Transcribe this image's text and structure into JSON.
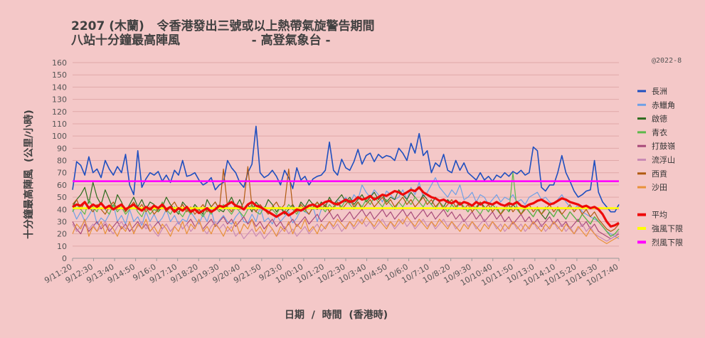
{
  "title_line1": "2207 (木蘭)   令香港發出三號或以上熱帶氣旋警告期間",
  "title_line2": "八站十分鐘最高陣風                 - 高登氣象台 -",
  "credit": "@2022-8",
  "xlabel": "日期  /  時間  (香港時)",
  "ylabel": "十分鐘最高陣風  (公里/小時)",
  "chart_data": {
    "type": "line",
    "ylim": [
      0,
      160
    ],
    "yticks": [
      0,
      10,
      20,
      30,
      40,
      50,
      60,
      70,
      80,
      90,
      100,
      110,
      120,
      130,
      140,
      150,
      160
    ],
    "grid": true,
    "legend_placement": "right",
    "x_tick_labels": [
      "9/11:20",
      "9/12:30",
      "9/13:40",
      "9/14:50",
      "9/16:0",
      "9/17:10",
      "9/18:20",
      "9/19:30",
      "9/20:40",
      "9/21:50",
      "9/23:0",
      "10/0:10",
      "10/1:20",
      "10/2:30",
      "10/3:40",
      "10/4:50",
      "10/6:0",
      "10/7:10",
      "10/8:20",
      "10/9:30",
      "10/10:40",
      "10/11:50",
      "10/13:0",
      "10/14:10",
      "10/15:20",
      "10/16:30",
      "10/17:40"
    ],
    "points_per_series": 135,
    "series": [
      {
        "name": "長洲",
        "color": "#1f4fbf",
        "width": 1.6,
        "anchors": [
          56,
          79,
          76,
          68,
          83,
          70,
          73,
          66,
          80,
          73,
          68,
          75,
          70,
          85,
          60,
          52,
          88,
          58,
          65,
          70,
          68,
          71,
          63,
          68,
          62,
          72,
          68,
          80,
          67,
          68,
          70,
          64,
          60,
          62,
          66,
          56,
          60,
          62,
          80,
          74,
          70,
          62,
          58,
          70,
          77,
          108,
          70,
          66,
          68,
          72,
          67,
          60,
          72,
          66,
          57,
          74,
          64,
          67,
          60,
          65,
          67,
          68,
          72,
          95,
          72,
          68,
          81,
          74,
          72,
          79,
          89,
          77,
          84,
          86,
          79,
          85,
          82,
          84,
          83,
          80,
          90,
          86,
          80,
          94,
          86,
          102,
          84,
          88,
          70,
          78,
          75,
          85,
          72,
          70,
          80,
          72,
          78,
          70,
          67,
          64,
          70,
          64,
          67,
          63,
          68,
          66,
          70,
          67,
          71,
          69,
          72,
          68,
          70,
          91,
          88,
          58,
          55,
          60,
          60,
          70,
          84,
          70,
          63,
          55,
          50,
          52,
          55,
          56,
          80,
          54,
          46,
          42,
          38,
          38,
          44
        ],
        "anchors_note": ""
      },
      {
        "name": "赤鱲角",
        "color": "#6fa0e6",
        "width": 1.2,
        "anchors": [
          40,
          32,
          38,
          30,
          35,
          41,
          28,
          33,
          30,
          36,
          44,
          30,
          35,
          28,
          40,
          30,
          34,
          27,
          38,
          30,
          36,
          29,
          33,
          40,
          30,
          35,
          28,
          32,
          30,
          38,
          33,
          28,
          36,
          30,
          40,
          26,
          31,
          35,
          30,
          28,
          34,
          38,
          30,
          29,
          36,
          30,
          42,
          30,
          33,
          28,
          36,
          30,
          34,
          38,
          29,
          33,
          40,
          38,
          36,
          42,
          30,
          40,
          44,
          38,
          42,
          48,
          46,
          50,
          44,
          52,
          48,
          60,
          54,
          50,
          56,
          52,
          46,
          55,
          52,
          48,
          50,
          56,
          48,
          58,
          52,
          62,
          50,
          54,
          60,
          66,
          58,
          54,
          50,
          56,
          52,
          60,
          48,
          50,
          54,
          46,
          52,
          50,
          44,
          48,
          52,
          46,
          50,
          48,
          52,
          46,
          48,
          44,
          50,
          52,
          54,
          48,
          50,
          46,
          44,
          48,
          52,
          46,
          42,
          40,
          44,
          38,
          36,
          34,
          32,
          30,
          26,
          22,
          20,
          18,
          16
        ]
      },
      {
        "name": "啟德",
        "color": "#2e6b1e",
        "width": 1.2,
        "anchors": [
          42,
          48,
          52,
          58,
          45,
          62,
          50,
          44,
          56,
          48,
          40,
          52,
          46,
          38,
          44,
          50,
          42,
          48,
          40,
          46,
          44,
          38,
          42,
          50,
          44,
          40,
          36,
          46,
          42,
          38,
          44,
          40,
          36,
          48,
          42,
          46,
          40,
          38,
          44,
          50,
          42,
          48,
          40,
          44,
          38,
          46,
          42,
          40,
          48,
          44,
          38,
          42,
          36,
          40,
          44,
          38,
          46,
          42,
          48,
          44,
          40,
          46,
          42,
          50,
          44,
          48,
          52,
          46,
          50,
          44,
          48,
          52,
          46,
          50,
          54,
          48,
          52,
          46,
          50,
          48,
          56,
          52,
          48,
          54,
          50,
          46,
          52,
          48,
          44,
          50,
          46,
          42,
          48,
          44,
          40,
          46,
          42,
          38,
          44,
          40,
          46,
          42,
          38,
          44,
          40,
          36,
          42,
          38,
          44,
          40,
          36,
          42,
          38,
          34,
          40,
          36,
          32,
          38,
          34,
          40,
          36,
          32,
          38,
          34,
          30,
          36,
          32,
          28,
          34,
          30,
          26,
          22,
          18,
          20,
          24
        ]
      },
      {
        "name": "青衣",
        "color": "#5cb84a",
        "width": 1.2,
        "anchors": [
          38,
          44,
          40,
          36,
          48,
          42,
          38,
          46,
          40,
          36,
          44,
          38,
          42,
          36,
          40,
          44,
          38,
          34,
          42,
          36,
          40,
          38,
          46,
          40,
          36,
          42,
          38,
          34,
          40,
          36,
          42,
          38,
          34,
          40,
          36,
          42,
          38,
          44,
          40,
          36,
          42,
          38,
          34,
          40,
          44,
          38,
          36,
          42,
          38,
          40,
          36,
          42,
          38,
          44,
          40,
          36,
          42,
          38,
          44,
          40,
          46,
          42,
          38,
          44,
          40,
          46,
          42,
          48,
          44,
          40,
          46,
          42,
          48,
          44,
          50,
          46,
          42,
          48,
          44,
          40,
          46,
          42,
          48,
          44,
          50,
          46,
          42,
          48,
          44,
          40,
          46,
          42,
          38,
          44,
          40,
          46,
          42,
          38,
          44,
          40,
          36,
          42,
          38,
          44,
          40,
          36,
          42,
          38,
          70,
          40,
          36,
          42,
          38,
          34,
          40,
          36,
          42,
          38,
          34,
          40,
          36,
          32,
          38,
          34,
          30,
          36,
          32,
          28,
          34,
          30,
          26,
          22,
          18,
          20,
          24
        ]
      },
      {
        "name": "打鼓嶺",
        "color": "#a84a7a",
        "width": 1.2,
        "anchors": [
          30,
          24,
          20,
          28,
          22,
          26,
          30,
          24,
          28,
          22,
          26,
          30,
          24,
          28,
          22,
          26,
          30,
          24,
          28,
          22,
          26,
          30,
          24,
          28,
          22,
          26,
          30,
          24,
          28,
          32,
          26,
          30,
          24,
          28,
          32,
          26,
          30,
          34,
          28,
          32,
          26,
          30,
          34,
          28,
          32,
          26,
          30,
          24,
          28,
          32,
          26,
          30,
          24,
          28,
          32,
          26,
          30,
          34,
          28,
          32,
          36,
          30,
          34,
          38,
          32,
          36,
          30,
          34,
          38,
          32,
          36,
          40,
          34,
          38,
          32,
          36,
          40,
          34,
          38,
          32,
          36,
          40,
          34,
          38,
          32,
          36,
          40,
          34,
          38,
          32,
          36,
          40,
          34,
          38,
          32,
          36,
          30,
          34,
          38,
          32,
          36,
          30,
          34,
          38,
          32,
          36,
          30,
          34,
          28,
          32,
          36,
          30,
          34,
          28,
          32,
          26,
          30,
          34,
          28,
          32,
          26,
          30,
          24,
          28,
          32,
          26,
          30,
          24,
          28,
          22,
          20,
          18,
          16,
          18,
          20
        ]
      },
      {
        "name": "流浮山",
        "color": "#c98ab4",
        "width": 1.2,
        "anchors": [
          28,
          22,
          26,
          30,
          24,
          28,
          22,
          26,
          30,
          24,
          20,
          26,
          30,
          24,
          28,
          22,
          26,
          30,
          24,
          28,
          22,
          18,
          24,
          28,
          22,
          26,
          30,
          24,
          28,
          22,
          26,
          30,
          24,
          20,
          26,
          30,
          24,
          28,
          22,
          26,
          18,
          22,
          16,
          20,
          24,
          18,
          22,
          16,
          20,
          24,
          18,
          22,
          26,
          20,
          24,
          18,
          22,
          26,
          20,
          24,
          28,
          22,
          26,
          30,
          24,
          28,
          22,
          26,
          30,
          24,
          28,
          32,
          26,
          30,
          24,
          28,
          32,
          26,
          30,
          24,
          28,
          32,
          26,
          30,
          24,
          28,
          32,
          26,
          30,
          24,
          28,
          32,
          26,
          30,
          24,
          28,
          32,
          26,
          30,
          24,
          28,
          32,
          26,
          30,
          24,
          28,
          22,
          26,
          30,
          24,
          28,
          22,
          26,
          30,
          24,
          28,
          22,
          26,
          30,
          24,
          28,
          22,
          26,
          20,
          24,
          28,
          22,
          26,
          20,
          18,
          16,
          14,
          16,
          18,
          22
        ]
      },
      {
        "name": "西貢",
        "color": "#b05a10",
        "width": 1.2,
        "anchors": [
          44,
          48,
          40,
          46,
          42,
          38,
          44,
          40,
          36,
          42,
          46,
          40,
          44,
          38,
          42,
          46,
          40,
          44,
          38,
          42,
          36,
          40,
          44,
          38,
          42,
          46,
          40,
          44,
          38,
          42,
          36,
          40,
          44,
          38,
          42,
          46,
          40,
          73,
          42,
          38,
          44,
          40,
          46,
          75,
          42,
          38,
          44,
          40,
          36,
          42,
          46,
          40,
          44,
          73,
          42,
          38,
          44,
          40,
          36,
          42,
          46,
          40,
          44,
          38,
          42,
          46,
          40,
          44,
          48,
          42,
          46,
          40,
          44,
          48,
          42,
          46,
          50,
          44,
          48,
          42,
          46,
          50,
          44,
          48,
          42,
          46,
          50,
          44,
          48,
          42,
          46,
          40,
          44,
          48,
          42,
          46,
          40,
          44,
          38,
          42,
          46,
          40,
          44,
          38,
          42,
          36,
          40,
          44,
          38,
          42,
          36,
          40,
          44,
          38,
          42,
          36,
          40,
          44,
          38,
          42,
          36,
          40,
          44,
          38,
          42,
          36,
          40,
          34,
          38,
          32,
          28,
          24,
          22,
          24,
          28
        ]
      },
      {
        "name": "沙田",
        "color": "#e8913a",
        "width": 1.2,
        "anchors": [
          20,
          28,
          24,
          32,
          18,
          26,
          22,
          30,
          20,
          28,
          24,
          18,
          26,
          22,
          30,
          20,
          28,
          24,
          32,
          22,
          26,
          20,
          28,
          24,
          18,
          26,
          22,
          30,
          20,
          28,
          24,
          32,
          22,
          26,
          20,
          28,
          24,
          18,
          26,
          22,
          30,
          20,
          28,
          24,
          32,
          22,
          26,
          20,
          28,
          24,
          18,
          26,
          22,
          30,
          20,
          28,
          24,
          32,
          22,
          26,
          20,
          28,
          24,
          30,
          26,
          32,
          28,
          24,
          30,
          26,
          32,
          28,
          34,
          30,
          26,
          32,
          28,
          24,
          30,
          26,
          32,
          28,
          34,
          30,
          26,
          32,
          28,
          24,
          30,
          26,
          32,
          28,
          24,
          30,
          26,
          22,
          28,
          24,
          30,
          26,
          22,
          28,
          24,
          30,
          26,
          22,
          28,
          24,
          30,
          26,
          22,
          28,
          24,
          30,
          26,
          22,
          28,
          24,
          30,
          26,
          22,
          28,
          24,
          20,
          26,
          22,
          18,
          24,
          20,
          16,
          14,
          12,
          14,
          16,
          18
        ]
      },
      {
        "name": "平均",
        "color": "#ee0a0a",
        "width": 3.2,
        "anchors": [
          42,
          44,
          43,
          46,
          41,
          44,
          42,
          45,
          41,
          43,
          40,
          42,
          44,
          40,
          42,
          44,
          41,
          39,
          42,
          40,
          43,
          41,
          44,
          40,
          42,
          38,
          41,
          39,
          42,
          38,
          40,
          37,
          39,
          41,
          38,
          40,
          43,
          42,
          44,
          46,
          43,
          42,
          40,
          44,
          46,
          43,
          42,
          40,
          38,
          36,
          34,
          36,
          38,
          35,
          37,
          40,
          39,
          41,
          43,
          44,
          42,
          44,
          46,
          47,
          45,
          44,
          46,
          48,
          46,
          47,
          50,
          48,
          49,
          51,
          48,
          50,
          52,
          51,
          53,
          55,
          54,
          52,
          54,
          56,
          55,
          58,
          54,
          52,
          50,
          49,
          47,
          48,
          46,
          45,
          47,
          44,
          46,
          45,
          43,
          46,
          44,
          46,
          45,
          44,
          46,
          44,
          43,
          45,
          44,
          46,
          43,
          42,
          44,
          45,
          47,
          48,
          46,
          44,
          45,
          47,
          49,
          48,
          46,
          45,
          44,
          42,
          43,
          41,
          42,
          40,
          36,
          30,
          26,
          27,
          29
        ]
      },
      {
        "name": "強風下限",
        "color": "#ffff00",
        "width": 2.6,
        "constant": 41
      },
      {
        "name": "烈風下限",
        "color": "#ff00ff",
        "width": 2.6,
        "constant": 63
      }
    ],
    "legend_order": [
      "長洲",
      "赤鱲角",
      "啟德",
      "青衣",
      "打鼓嶺",
      "流浮山",
      "西貢",
      "沙田",
      "",
      "平均",
      "強風下限",
      "烈風下限"
    ]
  }
}
